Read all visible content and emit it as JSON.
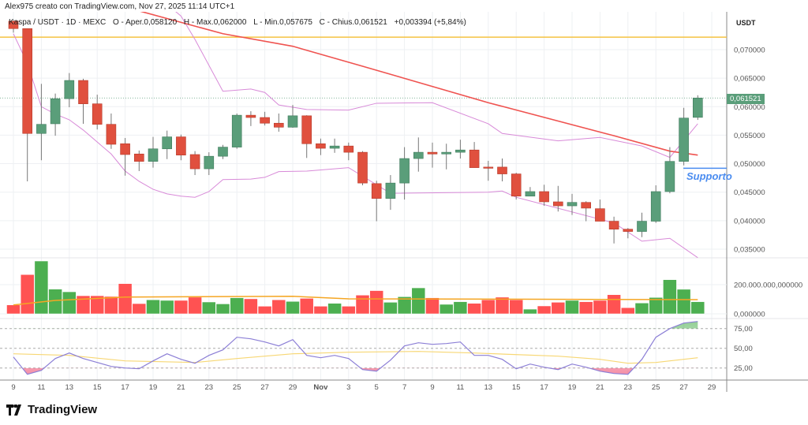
{
  "header": {
    "text": "Alex975 creato con TradingView.com, Nov 27, 2025 11:14 UTC+1"
  },
  "legend": {
    "symbol": "Kaspa / USDT · 1D · MEXC",
    "open": "O - Aper.0,058120",
    "high": "H - Max.0,062000",
    "low": "L - Min.0,057675",
    "close": "C - Chius.0,061521",
    "change": "+0,003394 (+5,84%)"
  },
  "axis": {
    "unit": "USDT",
    "price_ticks": [
      "0,070000",
      "0,065000",
      "0,060000",
      "0,055000",
      "0,050000",
      "0,045000",
      "0,040000",
      "0,035000"
    ],
    "volume_ticks": [
      "200.000.000,000000",
      "0,000000"
    ],
    "rsi_ticks": [
      "75,00",
      "50,00",
      "25,00"
    ],
    "x_ticks": [
      "9",
      "11",
      "13",
      "15",
      "17",
      "19",
      "21",
      "23",
      "25",
      "27",
      "29",
      "Nov",
      "3",
      "5",
      "7",
      "9",
      "11",
      "13",
      "15",
      "17",
      "19",
      "21",
      "23",
      "25",
      "27",
      "29"
    ],
    "current_price": "0,061521"
  },
  "annotations": {
    "support_label": "Supporto",
    "support_level": 0.0492,
    "resistance_level": 0.0722
  },
  "colors": {
    "up": "#5a9e7a",
    "down": "#e0503e",
    "vol_up": "#4caf50",
    "vol_down": "#ff5252",
    "ma": "#ef5350",
    "bands": "#d88ad8",
    "vol_ma": "#f5a623",
    "rsi": "#8c7fd6",
    "rsi_ma": "#f7d774",
    "support": "#4a8cf0",
    "resistance": "#f5c342"
  },
  "chart_data": {
    "type": "candlestick",
    "start_date": "2025-10-09",
    "price_range": [
      0.033,
      0.0765
    ],
    "candles": [
      [
        0.075,
        0.0752,
        0.073,
        0.0737
      ],
      [
        0.0737,
        0.0737,
        0.0469,
        0.0553
      ],
      [
        0.0553,
        0.064,
        0.0506,
        0.0569
      ],
      [
        0.057,
        0.0623,
        0.0549,
        0.0614
      ],
      [
        0.0614,
        0.0659,
        0.0599,
        0.0646
      ],
      [
        0.0646,
        0.0649,
        0.057,
        0.0605
      ],
      [
        0.0605,
        0.0621,
        0.056,
        0.0569
      ],
      [
        0.0569,
        0.0588,
        0.0526,
        0.0534
      ],
      [
        0.0535,
        0.0545,
        0.0479,
        0.0516
      ],
      [
        0.0517,
        0.0523,
        0.0487,
        0.0504
      ],
      [
        0.0504,
        0.0547,
        0.0493,
        0.0526
      ],
      [
        0.0526,
        0.0558,
        0.0508,
        0.0547
      ],
      [
        0.0547,
        0.0551,
        0.0506,
        0.0515
      ],
      [
        0.0516,
        0.0522,
        0.048,
        0.0491
      ],
      [
        0.0491,
        0.052,
        0.048,
        0.0513
      ],
      [
        0.0513,
        0.0533,
        0.0508,
        0.0529
      ],
      [
        0.0529,
        0.0588,
        0.0526,
        0.0585
      ],
      [
        0.0585,
        0.0592,
        0.0566,
        0.0581
      ],
      [
        0.0581,
        0.0591,
        0.0567,
        0.0571
      ],
      [
        0.0571,
        0.0588,
        0.0556,
        0.0564
      ],
      [
        0.0564,
        0.0603,
        0.0563,
        0.0584
      ],
      [
        0.0584,
        0.0585,
        0.051,
        0.0535
      ],
      [
        0.0535,
        0.0544,
        0.0515,
        0.0527
      ],
      [
        0.0527,
        0.0544,
        0.0519,
        0.0531
      ],
      [
        0.0531,
        0.0537,
        0.0506,
        0.052
      ],
      [
        0.052,
        0.0522,
        0.0462,
        0.0466
      ],
      [
        0.0465,
        0.047,
        0.0399,
        0.0439
      ],
      [
        0.0439,
        0.048,
        0.0419,
        0.0466
      ],
      [
        0.0466,
        0.0529,
        0.0437,
        0.0509
      ],
      [
        0.0509,
        0.0546,
        0.0486,
        0.052
      ],
      [
        0.052,
        0.0537,
        0.0493,
        0.0517
      ],
      [
        0.0517,
        0.0535,
        0.049,
        0.052
      ],
      [
        0.052,
        0.0542,
        0.0509,
        0.0524
      ],
      [
        0.0524,
        0.0538,
        0.0493,
        0.0493
      ],
      [
        0.0494,
        0.0505,
        0.047,
        0.0493
      ],
      [
        0.0494,
        0.0509,
        0.0469,
        0.0482
      ],
      [
        0.0482,
        0.0484,
        0.0437,
        0.0443
      ],
      [
        0.0443,
        0.0459,
        0.0443,
        0.0451
      ],
      [
        0.0451,
        0.0463,
        0.0426,
        0.0433
      ],
      [
        0.0433,
        0.0461,
        0.0416,
        0.0426
      ],
      [
        0.0426,
        0.0447,
        0.041,
        0.0432
      ],
      [
        0.0432,
        0.0434,
        0.0399,
        0.0422
      ],
      [
        0.0421,
        0.0437,
        0.0399,
        0.0399
      ],
      [
        0.0399,
        0.0407,
        0.036,
        0.0385
      ],
      [
        0.0385,
        0.0387,
        0.0369,
        0.0381
      ],
      [
        0.0381,
        0.0414,
        0.0371,
        0.0399
      ],
      [
        0.0399,
        0.0462,
        0.0396,
        0.0451
      ],
      [
        0.0451,
        0.0529,
        0.0448,
        0.0504
      ],
      [
        0.0504,
        0.0598,
        0.0497,
        0.058
      ],
      [
        0.05812,
        0.062,
        0.057675,
        0.061521
      ]
    ],
    "volume": [
      61000000,
      269000000,
      362000000,
      169000000,
      151000000,
      124000000,
      124000000,
      119000000,
      207000000,
      70000000,
      96000000,
      92000000,
      92000000,
      114000000,
      81000000,
      68000000,
      110000000,
      103000000,
      52000000,
      96000000,
      85000000,
      106000000,
      52000000,
      72000000,
      52000000,
      128000000,
      159000000,
      79000000,
      117000000,
      178000000,
      110000000,
      65000000,
      83000000,
      72000000,
      96000000,
      114000000,
      96000000,
      32000000,
      54000000,
      79000000,
      92000000,
      83000000,
      92000000,
      131000000,
      42000000,
      74000000,
      112000000,
      234000000,
      168000000,
      83000000
    ],
    "volume_ma": [
      [
        0,
        61000000
      ],
      [
        3,
        92000000
      ],
      [
        8,
        115000000
      ],
      [
        20,
        120000000
      ],
      [
        24,
        103000000
      ],
      [
        49,
        97000000
      ]
    ],
    "ma_line": [
      [
        "2025-10-18",
        0.0768
      ],
      [
        "2025-10-24",
        0.0728
      ],
      [
        "2025-10-29",
        0.0706
      ],
      [
        "2025-11-03",
        0.0671
      ],
      [
        "2025-11-12",
        0.0607
      ],
      [
        "2025-11-21",
        0.0549
      ],
      [
        "2025-11-25",
        0.0522
      ],
      [
        "2025-11-27",
        0.0515
      ]
    ],
    "upper_band": [
      [
        "2025-10-19",
        0.08
      ],
      [
        "2025-10-21",
        0.0759
      ],
      [
        "2025-10-22",
        0.0718
      ],
      [
        "2025-10-24",
        0.0627
      ],
      [
        "2025-10-26",
        0.0631
      ],
      [
        "2025-10-27",
        0.0625
      ],
      [
        "2025-10-28",
        0.0603
      ],
      [
        "2025-10-30",
        0.0595
      ],
      [
        "2025-11-02",
        0.0594
      ],
      [
        "2025-11-04",
        0.0606
      ],
      [
        "2025-11-08",
        0.0607
      ],
      [
        "2025-11-12",
        0.057
      ],
      [
        "2025-11-13",
        0.0553
      ],
      [
        "2025-11-17",
        0.054
      ],
      [
        "2025-11-20",
        0.0546
      ],
      [
        "2025-11-23",
        0.0531
      ],
      [
        "2025-11-25",
        0.0511
      ],
      [
        "2025-11-27",
        0.057
      ]
    ],
    "lower_band": [
      [
        "2025-10-09",
        0.0728
      ],
      [
        "2025-10-10",
        0.0676
      ],
      [
        "2025-10-11",
        0.06
      ],
      [
        "2025-10-12",
        0.0587
      ],
      [
        "2025-10-13",
        0.0577
      ],
      [
        "2025-10-14",
        0.0559
      ],
      [
        "2025-10-16",
        0.0517
      ],
      [
        "2025-10-17",
        0.0487
      ],
      [
        "2025-10-18",
        0.0469
      ],
      [
        "2025-10-19",
        0.0455
      ],
      [
        "2025-10-20",
        0.0447
      ],
      [
        "2025-10-21",
        0.0443
      ],
      [
        "2025-10-22",
        0.0441
      ],
      [
        "2025-10-23",
        0.0451
      ],
      [
        "2025-10-24",
        0.0472
      ],
      [
        "2025-10-26",
        0.0473
      ],
      [
        "2025-10-27",
        0.0476
      ],
      [
        "2025-10-28",
        0.0486
      ],
      [
        "2025-10-30",
        0.0487
      ],
      [
        "2025-11-02",
        0.0493
      ],
      [
        "2025-11-05",
        0.0448
      ],
      [
        "2025-11-12",
        0.045
      ],
      [
        "2025-11-13",
        0.0452
      ],
      [
        "2025-11-14",
        0.0441
      ],
      [
        "2025-11-21",
        0.0396
      ],
      [
        "2025-11-23",
        0.0364
      ],
      [
        "2025-11-25",
        0.0369
      ],
      [
        "2025-11-27",
        0.0335
      ]
    ],
    "rsi": [
      39,
      17,
      22,
      37,
      44,
      37,
      32,
      27,
      25,
      24,
      34,
      43,
      36,
      31,
      41,
      48,
      64,
      62,
      58,
      53,
      61,
      41,
      38,
      41,
      37,
      23,
      21,
      35,
      53,
      57,
      55,
      56,
      58,
      41,
      41,
      36,
      24,
      30,
      26,
      23,
      30,
      26,
      21,
      18,
      17,
      36,
      64,
      75,
      82,
      84
    ],
    "rsi_ma": [
      [
        0,
        43
      ],
      [
        4,
        41
      ],
      [
        8,
        34
      ],
      [
        13,
        32
      ],
      [
        16,
        37
      ],
      [
        20,
        43
      ],
      [
        24,
        45
      ],
      [
        29,
        46
      ],
      [
        33,
        44
      ],
      [
        39,
        40
      ],
      [
        42,
        36
      ],
      [
        44,
        31
      ],
      [
        46,
        32
      ],
      [
        49,
        38
      ]
    ]
  }
}
